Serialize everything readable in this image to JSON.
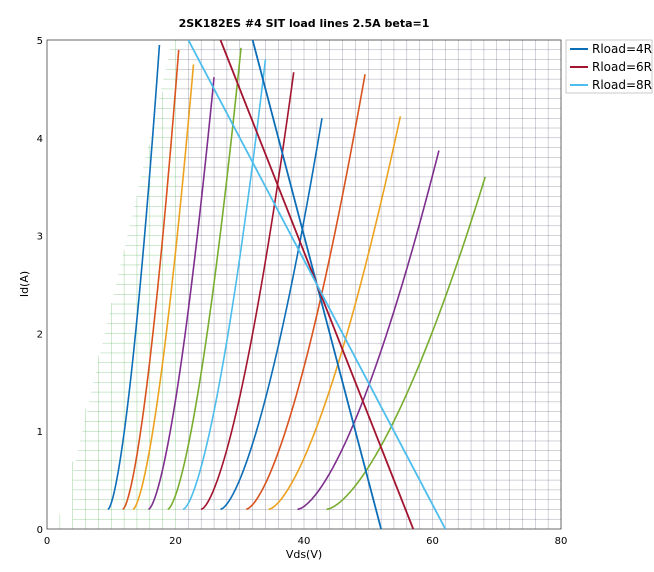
{
  "chart_data": {
    "type": "line",
    "title": "2SK182ES #4 SIT load lines 2.5A beta=1",
    "xlabel": "Vds(V)",
    "ylabel": "Id(A)",
    "xlim": [
      0,
      80
    ],
    "ylim": [
      0,
      5
    ],
    "xticks": [
      "0",
      "20",
      "40",
      "60",
      "80"
    ],
    "yticks": [
      "0",
      "1",
      "2",
      "3",
      "4",
      "5"
    ],
    "grid": true,
    "legend_position": "top-right",
    "colors": {
      "grid": "#3b3b5c",
      "grid_left": "#4caf50",
      "palette": [
        "#0d6eb8",
        "#d9531e",
        "#eda21f",
        "#7e2f8e",
        "#78ad2f",
        "#4cbdec",
        "#a3142f"
      ]
    },
    "characteristic_curves": [
      {
        "color": "#0d6eb8",
        "start": [
          9.5,
          0.2
        ],
        "end": [
          17.5,
          4.95
        ]
      },
      {
        "color": "#d9531e",
        "start": [
          11.8,
          0.2
        ],
        "end": [
          20.5,
          4.9
        ]
      },
      {
        "color": "#eda21f",
        "start": [
          13.4,
          0.2
        ],
        "end": [
          22.8,
          4.75
        ]
      },
      {
        "color": "#7e2f8e",
        "start": [
          15.8,
          0.2
        ],
        "end": [
          26.0,
          4.62
        ]
      },
      {
        "color": "#78ad2f",
        "start": [
          18.8,
          0.2
        ],
        "end": [
          30.2,
          4.92
        ]
      },
      {
        "color": "#4cbdec",
        "start": [
          21.2,
          0.2
        ],
        "end": [
          34.0,
          4.8
        ]
      },
      {
        "color": "#a3142f",
        "start": [
          24.0,
          0.2
        ],
        "end": [
          38.4,
          4.67
        ]
      },
      {
        "color": "#0d6eb8",
        "start": [
          27.0,
          0.2
        ],
        "end": [
          42.8,
          4.2
        ]
      },
      {
        "color": "#d9531e",
        "start": [
          31.0,
          0.2
        ],
        "end": [
          49.5,
          4.65
        ]
      },
      {
        "color": "#eda21f",
        "start": [
          34.5,
          0.2
        ],
        "end": [
          55.0,
          4.22
        ]
      },
      {
        "color": "#7e2f8e",
        "start": [
          39.0,
          0.2
        ],
        "end": [
          61.0,
          3.87
        ]
      },
      {
        "color": "#78ad2f",
        "start": [
          43.5,
          0.2
        ],
        "end": [
          68.2,
          3.6
        ]
      }
    ],
    "series": [
      {
        "name": "Rload=4R",
        "color": "#0d6eb8",
        "x": [
          32,
          52
        ],
        "y": [
          5,
          0
        ]
      },
      {
        "name": "Rload=6R",
        "color": "#a3142f",
        "x": [
          27,
          57
        ],
        "y": [
          5,
          0
        ]
      },
      {
        "name": "Rload=8R",
        "color": "#4cbdec",
        "x": [
          22,
          62
        ],
        "y": [
          5,
          0
        ]
      }
    ]
  }
}
